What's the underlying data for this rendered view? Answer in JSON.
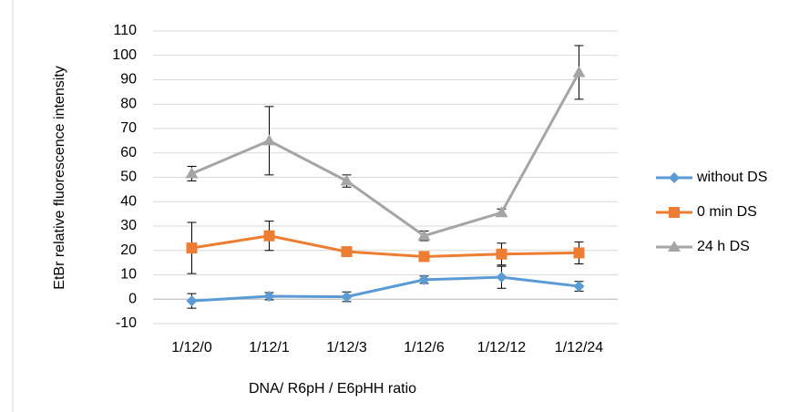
{
  "chart_data": {
    "type": "line",
    "categories": [
      "1/12/0",
      "1/12/1",
      "1/12/3",
      "1/12/6",
      "1/12/12",
      "1/12/24"
    ],
    "series": [
      {
        "name": "without DS",
        "color": "#5b9bd5",
        "marker": "diamond",
        "values": [
          -0.7,
          1.2,
          1,
          8,
          9,
          5.3
        ],
        "errors": [
          3,
          1.5,
          2,
          1.5,
          4.5,
          2
        ]
      },
      {
        "name": "0 min DS",
        "color": "#ed7d31",
        "marker": "square",
        "values": [
          21,
          26,
          19.5,
          17.5,
          18.5,
          19
        ],
        "errors": [
          10.5,
          6,
          0.5,
          0.5,
          4.5,
          4.5
        ]
      },
      {
        "name": "24 h DS",
        "color": "#a5a5a5",
        "marker": "triangle",
        "values": [
          51.5,
          65,
          48.5,
          26,
          35.5,
          93
        ],
        "errors": [
          3,
          14,
          2.5,
          2,
          1.5,
          11
        ]
      }
    ],
    "ylabel": "EtBr relative fluorescence intensity",
    "xlabel": "DNA/ R6pH / E6pHH ratio",
    "ylim": [
      -10,
      110
    ],
    "yticks": [
      -10,
      0,
      10,
      20,
      30,
      40,
      50,
      60,
      70,
      80,
      90,
      100,
      110
    ],
    "grid": true,
    "legend": "right"
  }
}
